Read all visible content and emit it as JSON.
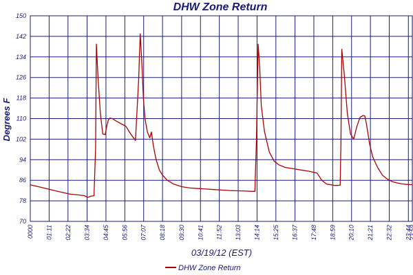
{
  "chart_data": {
    "type": "line",
    "title": "DHW Zone Return",
    "xlabel": "03/19/12 (EST)",
    "ylabel": "Degrees F",
    "ylim": [
      70,
      150
    ],
    "yticks": [
      70,
      78,
      86,
      94,
      102,
      110,
      118,
      126,
      134,
      142,
      150
    ],
    "xticks": [
      "00:00",
      "01:11",
      "02:22",
      "03:34",
      "04:45",
      "05:56",
      "07:07",
      "08:18",
      "09:30",
      "10:41",
      "11:52",
      "13:03",
      "14:14",
      "15:25",
      "16:37",
      "17:48",
      "18:59",
      "20:10",
      "21:21",
      "22:32",
      "23:44",
      "23:59"
    ],
    "xlabel_display": [
      "0000",
      "01:11",
      "02:22",
      "03:34",
      "04:45",
      "05:56",
      "07:07",
      "08:18",
      "09:30",
      "10:41",
      "11:52",
      "13:03",
      "14:14",
      "15:25",
      "16:37",
      "17:48",
      "18:59",
      "20:10",
      "21:21",
      "22:32",
      "23:44",
      "23:59"
    ],
    "xlim_hours": [
      0,
      23.98
    ],
    "grid": true,
    "legend_position": "bottom-center",
    "series": [
      {
        "name": "DHW Zone Return",
        "color": "#aa0000",
        "x": [
          0.0,
          0.5,
          1.0,
          1.5,
          2.0,
          2.5,
          3.0,
          3.4,
          3.6,
          3.8,
          4.0,
          4.1,
          4.15,
          4.25,
          4.4,
          4.55,
          4.7,
          4.8,
          4.9,
          5.0,
          5.15,
          5.4,
          5.7,
          6.0,
          6.3,
          6.6,
          6.8,
          6.9,
          7.0,
          7.1,
          7.2,
          7.35,
          7.5,
          7.6,
          7.7,
          7.8,
          7.9,
          8.1,
          8.3,
          8.6,
          9.0,
          9.5,
          10.0,
          10.5,
          11.0,
          11.5,
          12.0,
          12.5,
          13.0,
          13.5,
          13.9,
          14.1,
          14.2,
          14.3,
          14.4,
          14.5,
          14.7,
          15.0,
          15.3,
          15.6,
          16.0,
          16.5,
          17.0,
          17.5,
          18.0,
          18.3,
          18.6,
          18.9,
          19.1,
          19.3,
          19.45,
          19.5,
          19.55,
          19.7,
          19.9,
          20.1,
          20.3,
          20.5,
          20.7,
          20.9,
          21.0,
          21.1,
          21.2,
          21.3,
          21.5,
          21.8,
          22.1,
          22.4,
          22.7,
          23.0,
          23.3,
          23.6,
          23.98
        ],
        "y": [
          84.2,
          83.5,
          82.8,
          82.0,
          81.3,
          80.6,
          80.3,
          80.0,
          79.3,
          79.8,
          80.0,
          99.0,
          139.0,
          126.0,
          112.0,
          104.0,
          103.8,
          107.0,
          109.5,
          110.2,
          110.0,
          109.0,
          108.0,
          107.0,
          104.0,
          101.5,
          125.0,
          143.0,
          132.0,
          118.0,
          110.0,
          104.8,
          102.5,
          104.8,
          100.5,
          97.0,
          94.0,
          90.0,
          88.0,
          86.0,
          84.5,
          83.5,
          83.0,
          82.8,
          82.6,
          82.4,
          82.2,
          82.0,
          81.9,
          81.8,
          81.7,
          81.7,
          102.0,
          139.0,
          130.0,
          115.0,
          105.0,
          97.0,
          93.5,
          92.0,
          91.0,
          90.5,
          90.0,
          89.5,
          88.8,
          86.0,
          84.5,
          84.2,
          84.0,
          84.0,
          84.1,
          100.0,
          137.0,
          128.0,
          112.0,
          104.0,
          102.0,
          107.0,
          110.5,
          111.2,
          111.0,
          108.0,
          104.0,
          100.0,
          95.0,
          91.0,
          88.0,
          86.5,
          85.5,
          85.0,
          84.6,
          84.4,
          84.3
        ]
      }
    ]
  }
}
